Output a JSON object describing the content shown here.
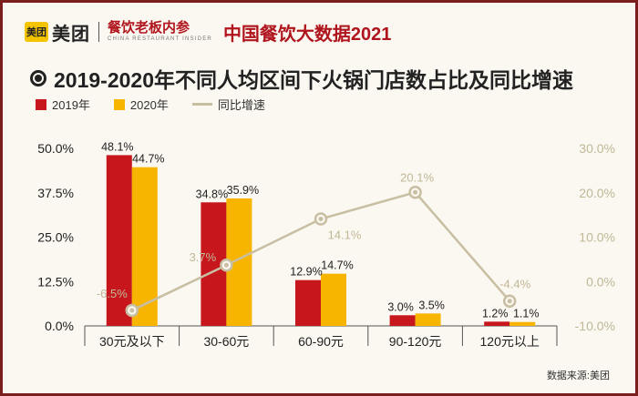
{
  "header": {
    "logo_badge": "美团",
    "logo_text": "美团",
    "brand_cn": "餐饮老板内参",
    "brand_en": "CHINA RESTAURANT INSIDER",
    "title": "中国餐饮大数据2021"
  },
  "source": "数据来源:美团",
  "colors": {
    "series_2019": "#c8161d",
    "series_2020": "#f7b500",
    "growth": "#c8bfa3"
  },
  "chart_data": {
    "type": "bar",
    "title": "2019-2020年不同人均区间下火锅门店数占比及同比增速",
    "categories": [
      "30元及以下",
      "30-60元",
      "60-90元",
      "90-120元",
      "120元以上"
    ],
    "series": [
      {
        "name": "2019年",
        "type": "bar",
        "axis": "left",
        "values": [
          48.1,
          34.8,
          12.9,
          3.0,
          1.2
        ],
        "labels": [
          "48.1%",
          "34.8%",
          "12.9%",
          "3.0%",
          "1.2%"
        ]
      },
      {
        "name": "2020年",
        "type": "bar",
        "axis": "left",
        "values": [
          44.7,
          35.9,
          14.7,
          3.5,
          1.1
        ],
        "labels": [
          "44.7%",
          "35.9%",
          "14.7%",
          "3.5%",
          "1.1%"
        ]
      },
      {
        "name": "同比增速",
        "type": "line",
        "axis": "right",
        "values": [
          -6.5,
          3.7,
          14.1,
          20.1,
          -4.4
        ],
        "labels": [
          "-6.5%",
          "3.7%",
          "14.1%",
          "20.1%",
          "-4.4%"
        ]
      }
    ],
    "ylim_left": [
      0,
      50
    ],
    "yticks_left": [
      "0.0%",
      "12.5%",
      "25.0%",
      "37.5%",
      "50.0%"
    ],
    "ylim_right": [
      -10,
      30
    ],
    "yticks_right": [
      "-10.0%",
      "0.0%",
      "10.0%",
      "20.0%",
      "30.0%"
    ],
    "legend_position": "top-left",
    "grid": false
  }
}
